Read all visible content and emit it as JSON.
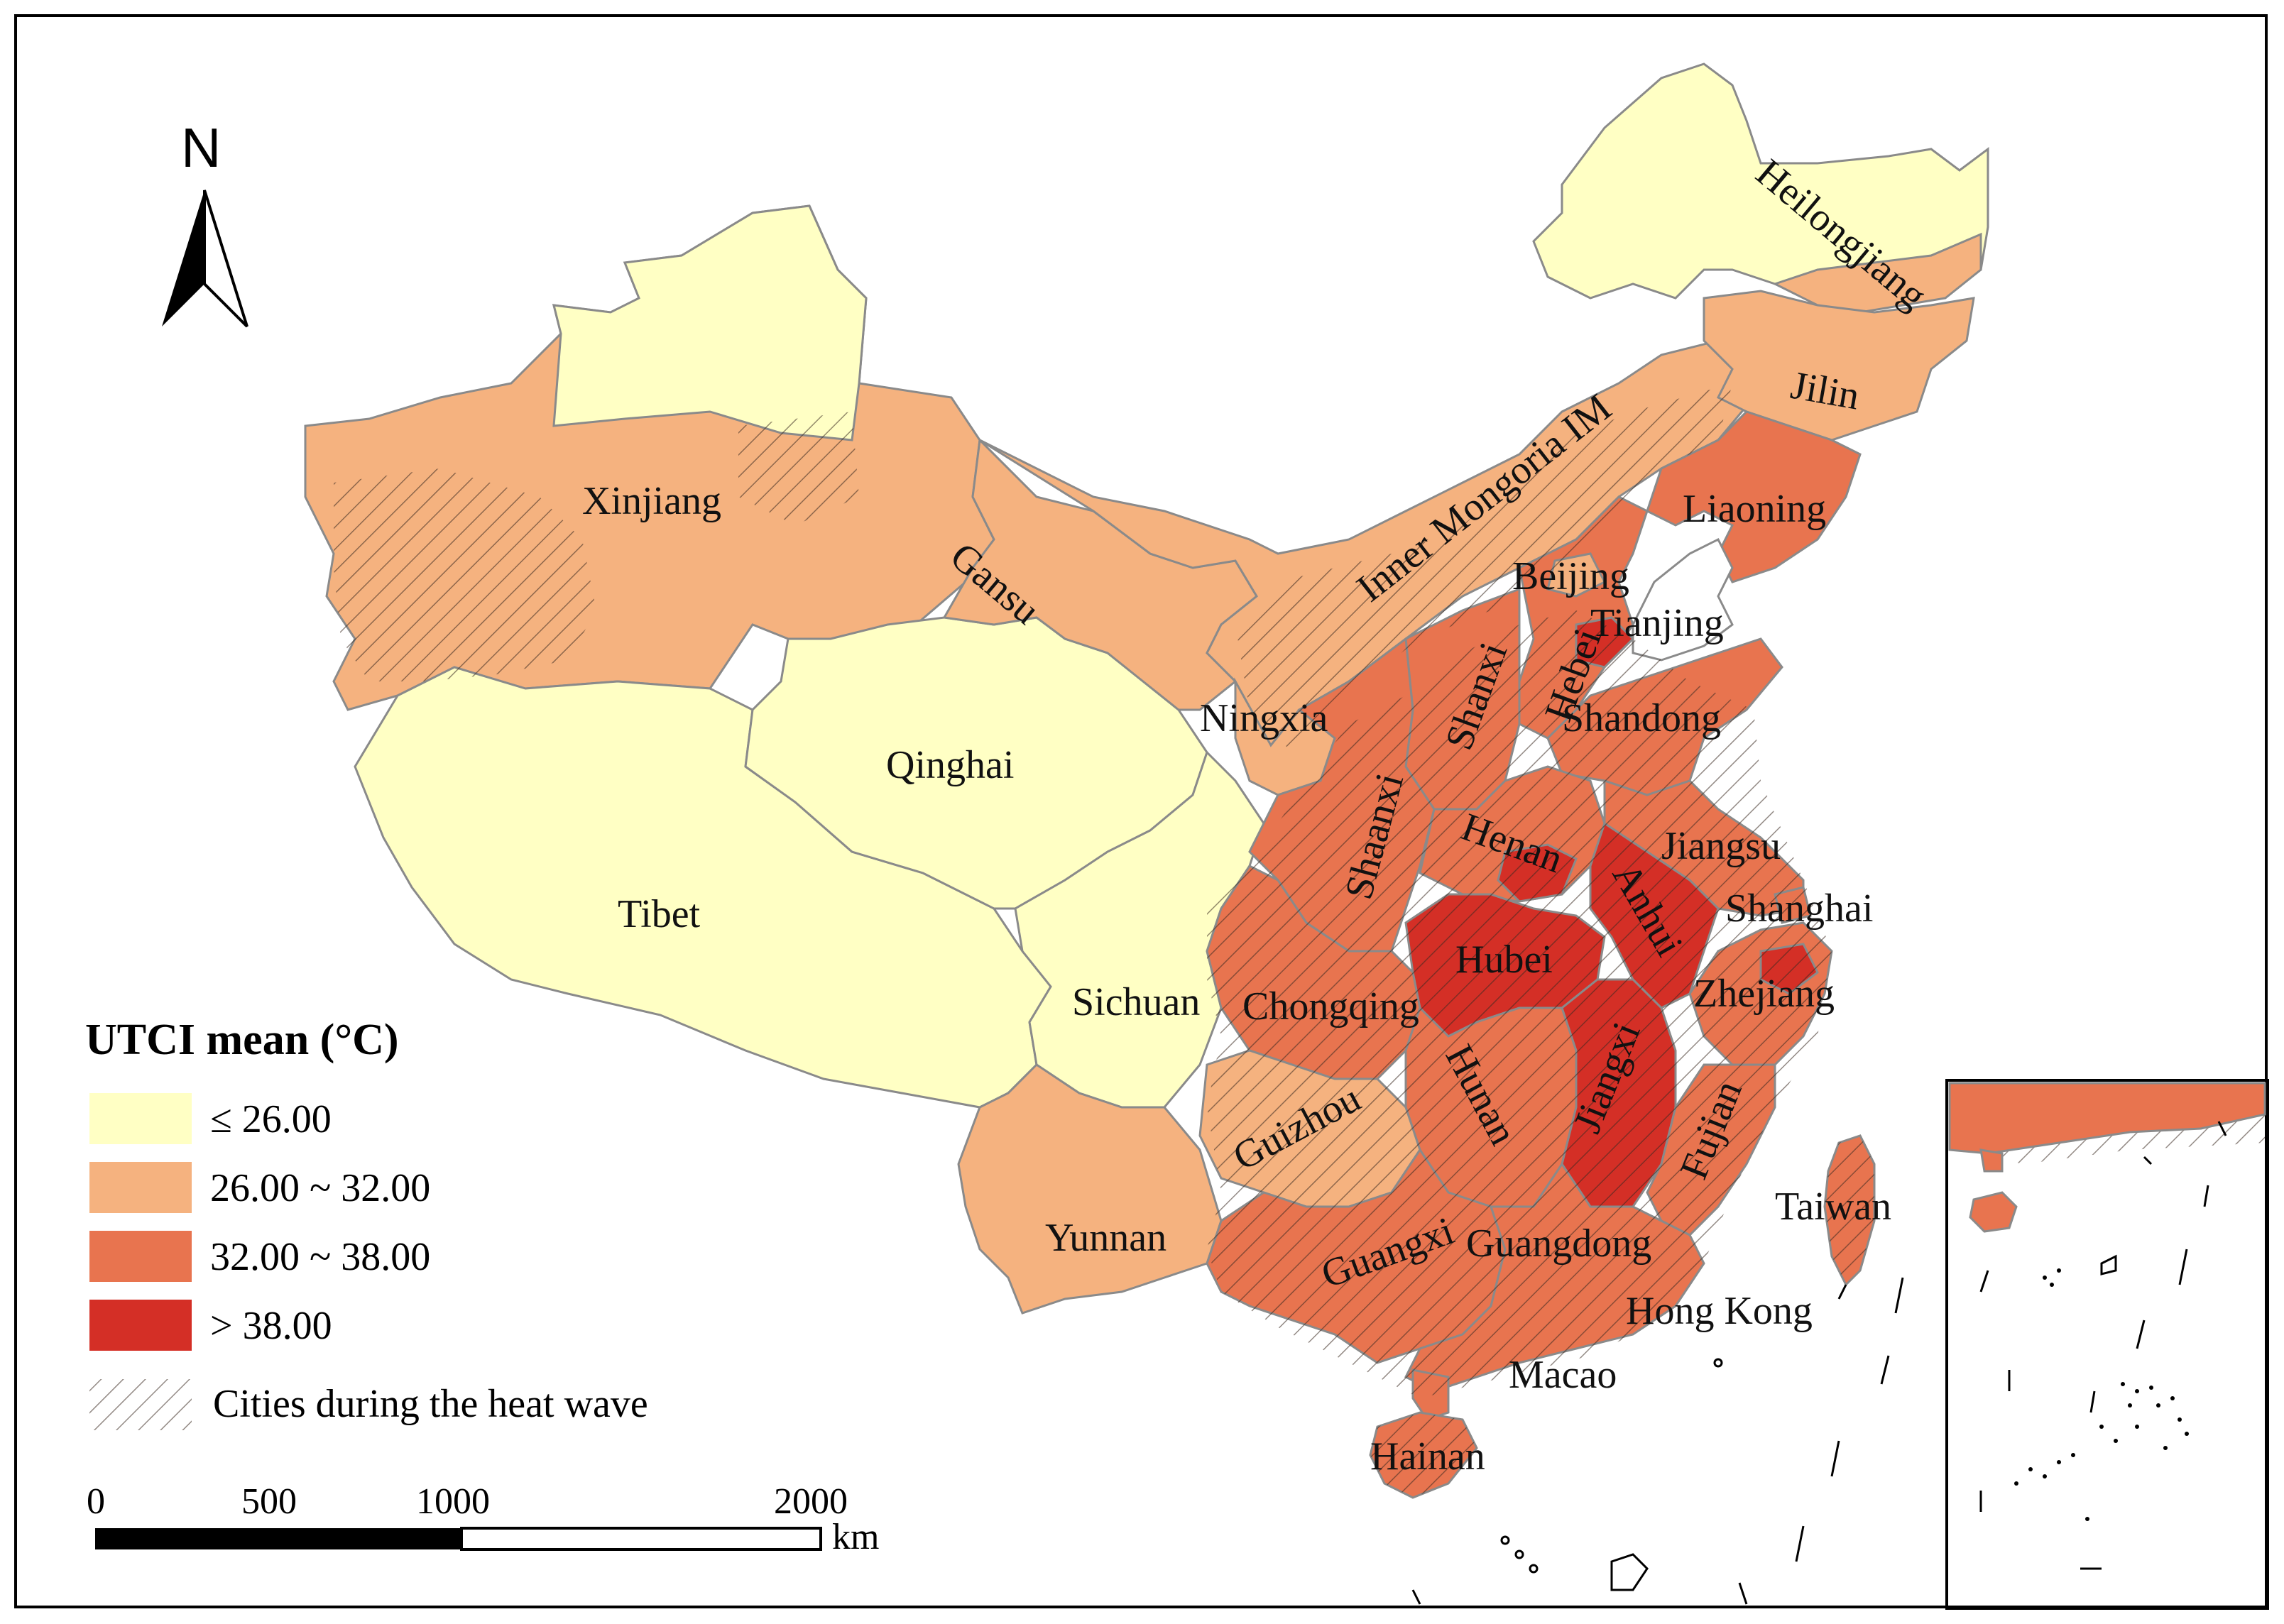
{
  "legend": {
    "title": "UTCI mean (°C)",
    "items": [
      {
        "label": "≤ 26.00",
        "color": "#ffffc4"
      },
      {
        "label": "26.00 ~ 32.00",
        "color": "#f5b27f"
      },
      {
        "label": "32.00 ~ 38.00",
        "color": "#e8744f"
      },
      {
        "label": "> 38.00",
        "color": "#d42f26"
      }
    ],
    "hatch_label": "Cities during the heat wave"
  },
  "north_arrow": {
    "label": "N"
  },
  "scale_bar": {
    "ticks": [
      "0",
      "500",
      "1000",
      "2000"
    ],
    "unit": "km"
  },
  "regions": [
    {
      "label": "Xinjiang",
      "class": "26.00 ~ 32.00"
    },
    {
      "label": "Tibet",
      "class": "≤ 26.00"
    },
    {
      "label": "Qinghai",
      "class": "≤ 26.00"
    },
    {
      "label": "Gansu",
      "class": "26.00 ~ 32.00"
    },
    {
      "label": "Sichuan",
      "class": "≤ 26.00"
    },
    {
      "label": "Yunnan",
      "class": "26.00 ~ 32.00"
    },
    {
      "label": "Inner Mongoria IM",
      "class": "26.00 ~ 32.00"
    },
    {
      "label": "Heilongjiang",
      "class": "≤ 26.00"
    },
    {
      "label": "Jilin",
      "class": "26.00 ~ 32.00"
    },
    {
      "label": "Liaoning",
      "class": "32.00 ~ 38.00"
    },
    {
      "label": "Beijing",
      "class": "26.00 ~ 32.00"
    },
    {
      "label": "Tianjing",
      "class": "> 38.00"
    },
    {
      "label": "Hebei",
      "class": "32.00 ~ 38.00"
    },
    {
      "label": "Shanxi",
      "class": "32.00 ~ 38.00"
    },
    {
      "label": "Shandong",
      "class": "32.00 ~ 38.00"
    },
    {
      "label": "Ningxia",
      "class": "26.00 ~ 32.00"
    },
    {
      "label": "Shaanxi",
      "class": "32.00 ~ 38.00"
    },
    {
      "label": "Henan",
      "class": "32.00 ~ 38.00"
    },
    {
      "label": "Jiangsu",
      "class": "32.00 ~ 38.00"
    },
    {
      "label": "Anhui",
      "class": "> 38.00"
    },
    {
      "label": "Shanghai",
      "class": "32.00 ~ 38.00"
    },
    {
      "label": "Hubei",
      "class": "> 38.00"
    },
    {
      "label": "Zhejiang",
      "class": "32.00 ~ 38.00"
    },
    {
      "label": "Chongqing",
      "class": "32.00 ~ 38.00"
    },
    {
      "label": "Hunan",
      "class": "32.00 ~ 38.00"
    },
    {
      "label": "Jiangxi",
      "class": "> 38.00"
    },
    {
      "label": "Guizhou",
      "class": "26.00 ~ 32.00"
    },
    {
      "label": "Fujian",
      "class": "32.00 ~ 38.00"
    },
    {
      "label": "Taiwan",
      "class": "32.00 ~ 38.00"
    },
    {
      "label": "Guangxi",
      "class": "32.00 ~ 38.00"
    },
    {
      "label": "Guangdong",
      "class": "32.00 ~ 38.00"
    },
    {
      "label": "Hong Kong",
      "class": ""
    },
    {
      "label": "Macao",
      "class": ""
    },
    {
      "label": "Hainan",
      "class": "32.00 ~ 38.00"
    }
  ]
}
